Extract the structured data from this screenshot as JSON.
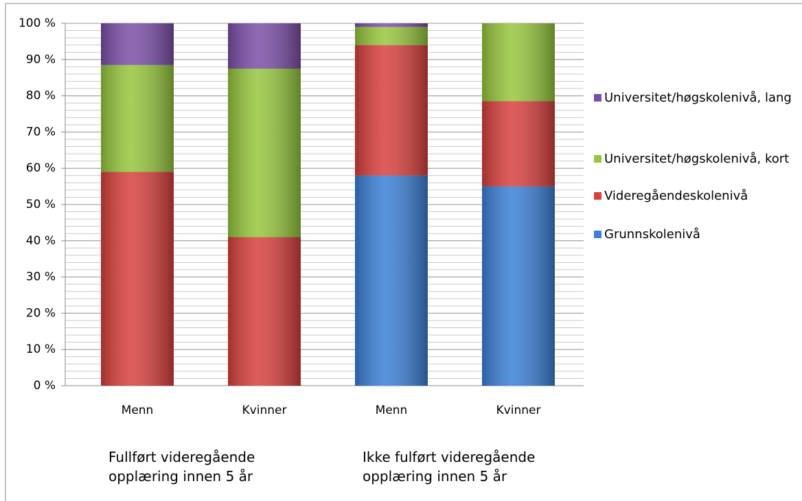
{
  "chart_data": {
    "type": "stacked_bar",
    "categories": [
      "Menn",
      "Kvinner",
      "Menn",
      "Kvinner"
    ],
    "groups": [
      {
        "label": "Fullført videregående opplæring innen 5 år",
        "categories": [
          0,
          1
        ]
      },
      {
        "label": "Ikke fulført videregående opplæring innen 5 år",
        "categories": [
          2,
          3
        ]
      }
    ],
    "series": [
      {
        "name": "Grunnskolenivå",
        "color": "#3b7fd6",
        "values": [
          0,
          0,
          58,
          55
        ]
      },
      {
        "name": "Videregåendeskolenivå",
        "color": "#d8403d",
        "values": [
          59,
          41,
          36,
          23.5
        ]
      },
      {
        "name": "Universitet/høgskolenivå, kort",
        "color": "#96c63d",
        "values": [
          29.5,
          46.5,
          5,
          21.5
        ]
      },
      {
        "name": "Universitet/høgskolenivå, lang",
        "color": "#7b4fa6",
        "values": [
          11.5,
          12.5,
          1,
          0
        ]
      }
    ],
    "ylim": [
      0,
      100
    ],
    "yticks": [
      {
        "value": 0,
        "label": "0 %"
      },
      {
        "value": 10,
        "label": "10 %"
      },
      {
        "value": 20,
        "label": "20 %"
      },
      {
        "value": 30,
        "label": "30 %"
      },
      {
        "value": 40,
        "label": "40 %"
      },
      {
        "value": 50,
        "label": "50 %"
      },
      {
        "value": 60,
        "label": "60 %"
      },
      {
        "value": 70,
        "label": "70 %"
      },
      {
        "value": 80,
        "label": "80 %"
      },
      {
        "value": 90,
        "label": "90 %"
      },
      {
        "value": 100,
        "label": "100 %"
      }
    ],
    "minor_grid_step": 2,
    "grid": true,
    "legend": "right"
  }
}
